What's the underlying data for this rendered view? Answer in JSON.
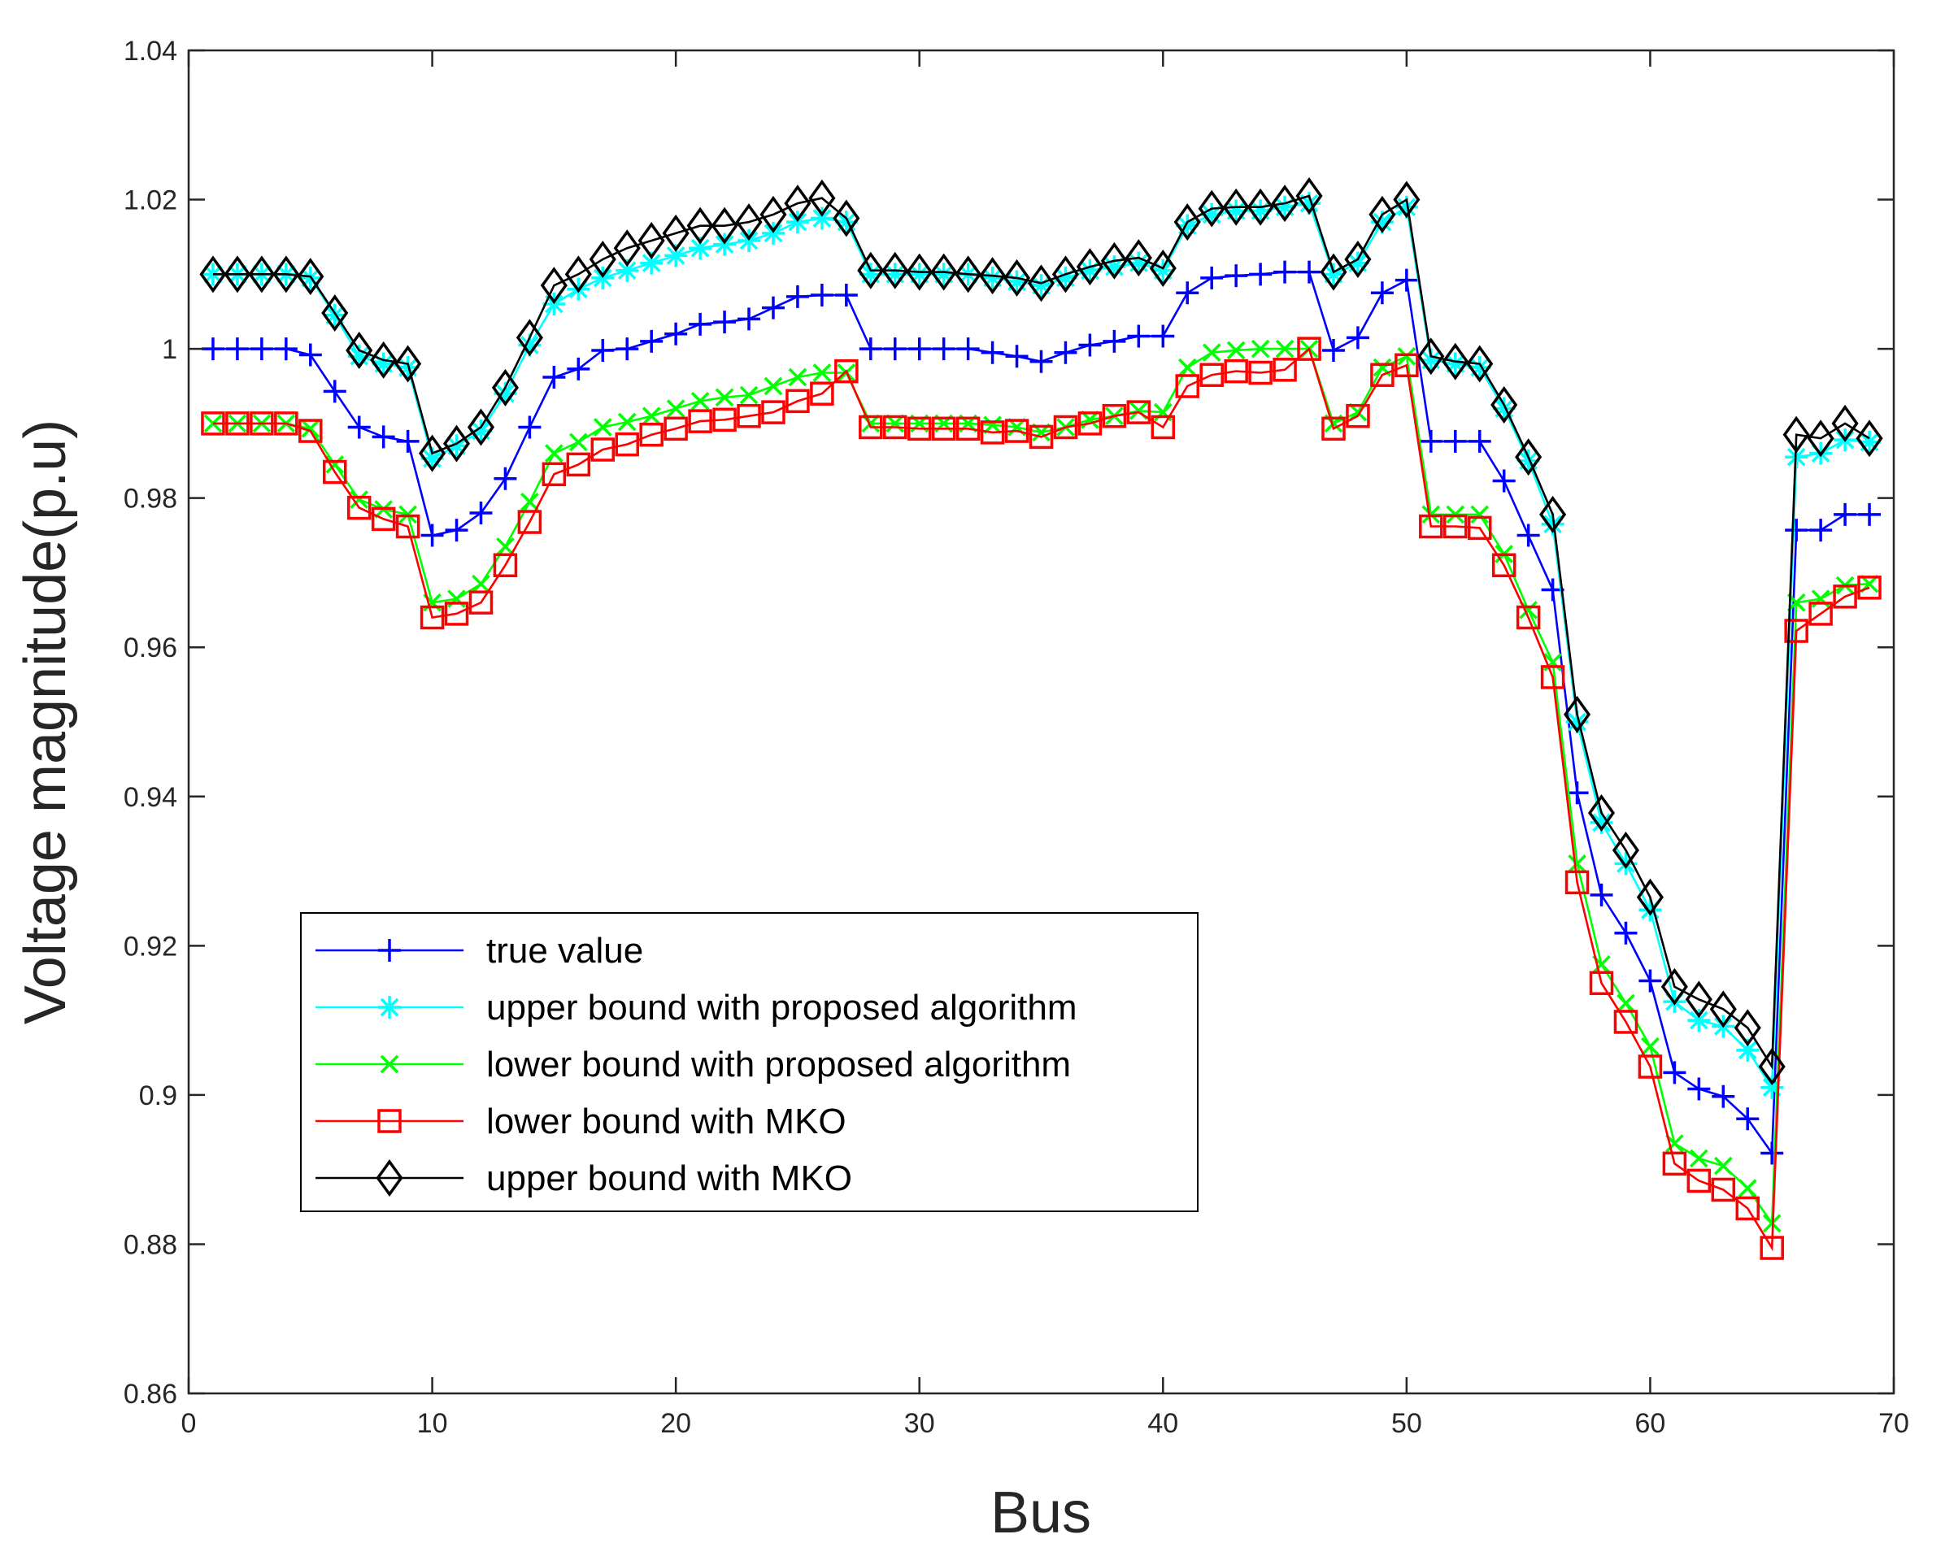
{
  "chart_data": {
    "type": "line",
    "xlabel": "Bus",
    "ylabel": "Voltage magnitude(p.u)",
    "xlim": [
      0,
      70
    ],
    "ylim": [
      0.86,
      1.04
    ],
    "xticks": [
      "0",
      "10",
      "20",
      "30",
      "40",
      "50",
      "60",
      "70"
    ],
    "yticks": [
      "0.86",
      "0.88",
      "0.9",
      "0.92",
      "0.94",
      "0.96",
      "0.98",
      "1",
      "1.02",
      "1.04"
    ],
    "grid": false,
    "legend_position": "lower-left",
    "x": [
      1,
      2,
      3,
      4,
      5,
      6,
      7,
      8,
      9,
      10,
      11,
      12,
      13,
      14,
      15,
      16,
      17,
      18,
      19,
      20,
      21,
      22,
      23,
      24,
      25,
      26,
      27,
      28,
      29,
      30,
      31,
      32,
      33,
      34,
      35,
      36,
      37,
      38,
      39,
      40,
      41,
      42,
      43,
      44,
      45,
      46,
      47,
      48,
      49,
      50,
      51,
      52,
      53,
      54,
      55,
      56,
      57,
      58,
      59,
      60,
      61,
      62,
      63,
      64,
      65,
      66,
      67,
      68,
      69
    ],
    "series": [
      {
        "name": "true value",
        "color": "#0000ff",
        "marker": "plus",
        "values": [
          1.0,
          1.0,
          1.0,
          1.0,
          0.9992,
          0.9943,
          0.9895,
          0.9882,
          0.9876,
          0.975,
          0.9757,
          0.978,
          0.9826,
          0.9895,
          0.9962,
          0.9973,
          0.9998,
          1.0,
          1.001,
          1.002,
          1.0033,
          1.0036,
          1.004,
          1.0055,
          1.007,
          1.0072,
          1.0072,
          1.0,
          1.0,
          1.0,
          1.0,
          1.0,
          0.9995,
          0.999,
          0.9983,
          0.9995,
          1.0005,
          1.001,
          1.0017,
          1.0017,
          1.0075,
          1.0095,
          1.0098,
          1.01,
          1.0103,
          1.0103,
          0.9998,
          1.0015,
          1.0075,
          1.0092,
          0.9876,
          0.9876,
          0.9876,
          0.9823,
          0.975,
          0.9677,
          0.9405,
          0.9268,
          0.9217,
          0.9153,
          0.903,
          0.9008,
          0.8998,
          0.8968,
          0.8922,
          0.9757,
          0.9757,
          0.9778,
          0.9778
        ]
      },
      {
        "name": "upper bound with proposed algorithm",
        "color": "#00ffff",
        "marker": "asterisk",
        "values": [
          1.01,
          1.01,
          1.01,
          1.01,
          1.0095,
          1.0045,
          0.999,
          0.998,
          0.9975,
          0.9853,
          0.987,
          0.989,
          0.994,
          1.0005,
          1.006,
          1.008,
          1.0095,
          1.0105,
          1.0115,
          1.0125,
          1.0135,
          1.014,
          1.0145,
          1.0155,
          1.017,
          1.0175,
          1.017,
          1.01,
          1.01,
          1.01,
          1.01,
          1.01,
          1.0095,
          1.009,
          1.0085,
          1.0095,
          1.0105,
          1.011,
          1.0115,
          1.0105,
          1.0165,
          1.018,
          1.0185,
          1.0185,
          1.019,
          1.0195,
          1.01,
          1.0115,
          1.017,
          1.019,
          0.9985,
          0.998,
          0.9975,
          0.992,
          0.985,
          0.9765,
          0.95,
          0.9365,
          0.931,
          0.9248,
          0.9125,
          0.91,
          0.9092,
          0.906,
          0.901,
          0.9855,
          0.986,
          0.9878,
          0.9875
        ]
      },
      {
        "name": "lower bound with proposed algorithm",
        "color": "#00ff00",
        "marker": "cross",
        "values": [
          0.99,
          0.99,
          0.99,
          0.99,
          0.9893,
          0.9845,
          0.9798,
          0.9785,
          0.9778,
          0.966,
          0.9665,
          0.9685,
          0.9735,
          0.9795,
          0.986,
          0.9875,
          0.9895,
          0.9902,
          0.991,
          0.992,
          0.993,
          0.9935,
          0.9938,
          0.995,
          0.9962,
          0.9968,
          0.9968,
          0.99,
          0.99,
          0.99,
          0.99,
          0.99,
          0.9898,
          0.9895,
          0.9888,
          0.9895,
          0.9905,
          0.991,
          0.9917,
          0.9915,
          0.9975,
          0.9995,
          0.9998,
          1.0,
          1.0,
          1.0,
          0.99,
          0.9915,
          0.9975,
          0.999,
          0.9778,
          0.9778,
          0.9778,
          0.9725,
          0.965,
          0.958,
          0.931,
          0.9175,
          0.9123,
          0.9065,
          0.8935,
          0.8915,
          0.8905,
          0.8875,
          0.8828,
          0.966,
          0.9665,
          0.9683,
          0.9685
        ]
      },
      {
        "name": "lower bound with MKO",
        "color": "#ff0000",
        "marker": "square",
        "values": [
          0.99,
          0.99,
          0.99,
          0.99,
          0.989,
          0.9835,
          0.9787,
          0.9772,
          0.9762,
          0.964,
          0.9645,
          0.966,
          0.971,
          0.9768,
          0.9832,
          0.9845,
          0.9865,
          0.9872,
          0.9885,
          0.9893,
          0.9903,
          0.9905,
          0.991,
          0.9915,
          0.993,
          0.994,
          0.997,
          0.9895,
          0.9895,
          0.9893,
          0.9893,
          0.9893,
          0.9888,
          0.989,
          0.9882,
          0.9895,
          0.99,
          0.991,
          0.9915,
          0.9895,
          0.995,
          0.9965,
          0.997,
          0.9968,
          0.9972,
          1.0,
          0.9893,
          0.991,
          0.9965,
          0.9978,
          0.9762,
          0.9762,
          0.976,
          0.971,
          0.964,
          0.956,
          0.9285,
          0.915,
          0.9098,
          0.9038,
          0.8908,
          0.8885,
          0.8873,
          0.8848,
          0.8795,
          0.9622,
          0.9645,
          0.9668,
          0.968
        ]
      },
      {
        "name": "upper bound with MKO",
        "color": "#000000",
        "marker": "diamond",
        "values": [
          1.01,
          1.01,
          1.01,
          1.01,
          1.0097,
          1.0048,
          0.9998,
          0.9985,
          0.998,
          0.986,
          0.9873,
          0.9895,
          0.9948,
          1.0015,
          1.0085,
          1.01,
          1.012,
          1.0135,
          1.0145,
          1.0155,
          1.0165,
          1.0165,
          1.017,
          1.018,
          1.0195,
          1.0202,
          1.0175,
          1.0105,
          1.0105,
          1.0103,
          1.0103,
          1.01,
          1.0098,
          1.0095,
          1.0088,
          1.01,
          1.011,
          1.0118,
          1.0122,
          1.0108,
          1.017,
          1.0188,
          1.019,
          1.019,
          1.0195,
          1.0205,
          1.0103,
          1.012,
          1.018,
          1.02,
          0.999,
          0.9983,
          0.998,
          0.9925,
          0.9855,
          0.9778,
          0.951,
          0.9378,
          0.9328,
          0.9265,
          0.9145,
          0.9128,
          0.9115,
          0.909,
          0.9038,
          0.9885,
          0.988,
          0.99,
          0.988
        ]
      }
    ]
  }
}
